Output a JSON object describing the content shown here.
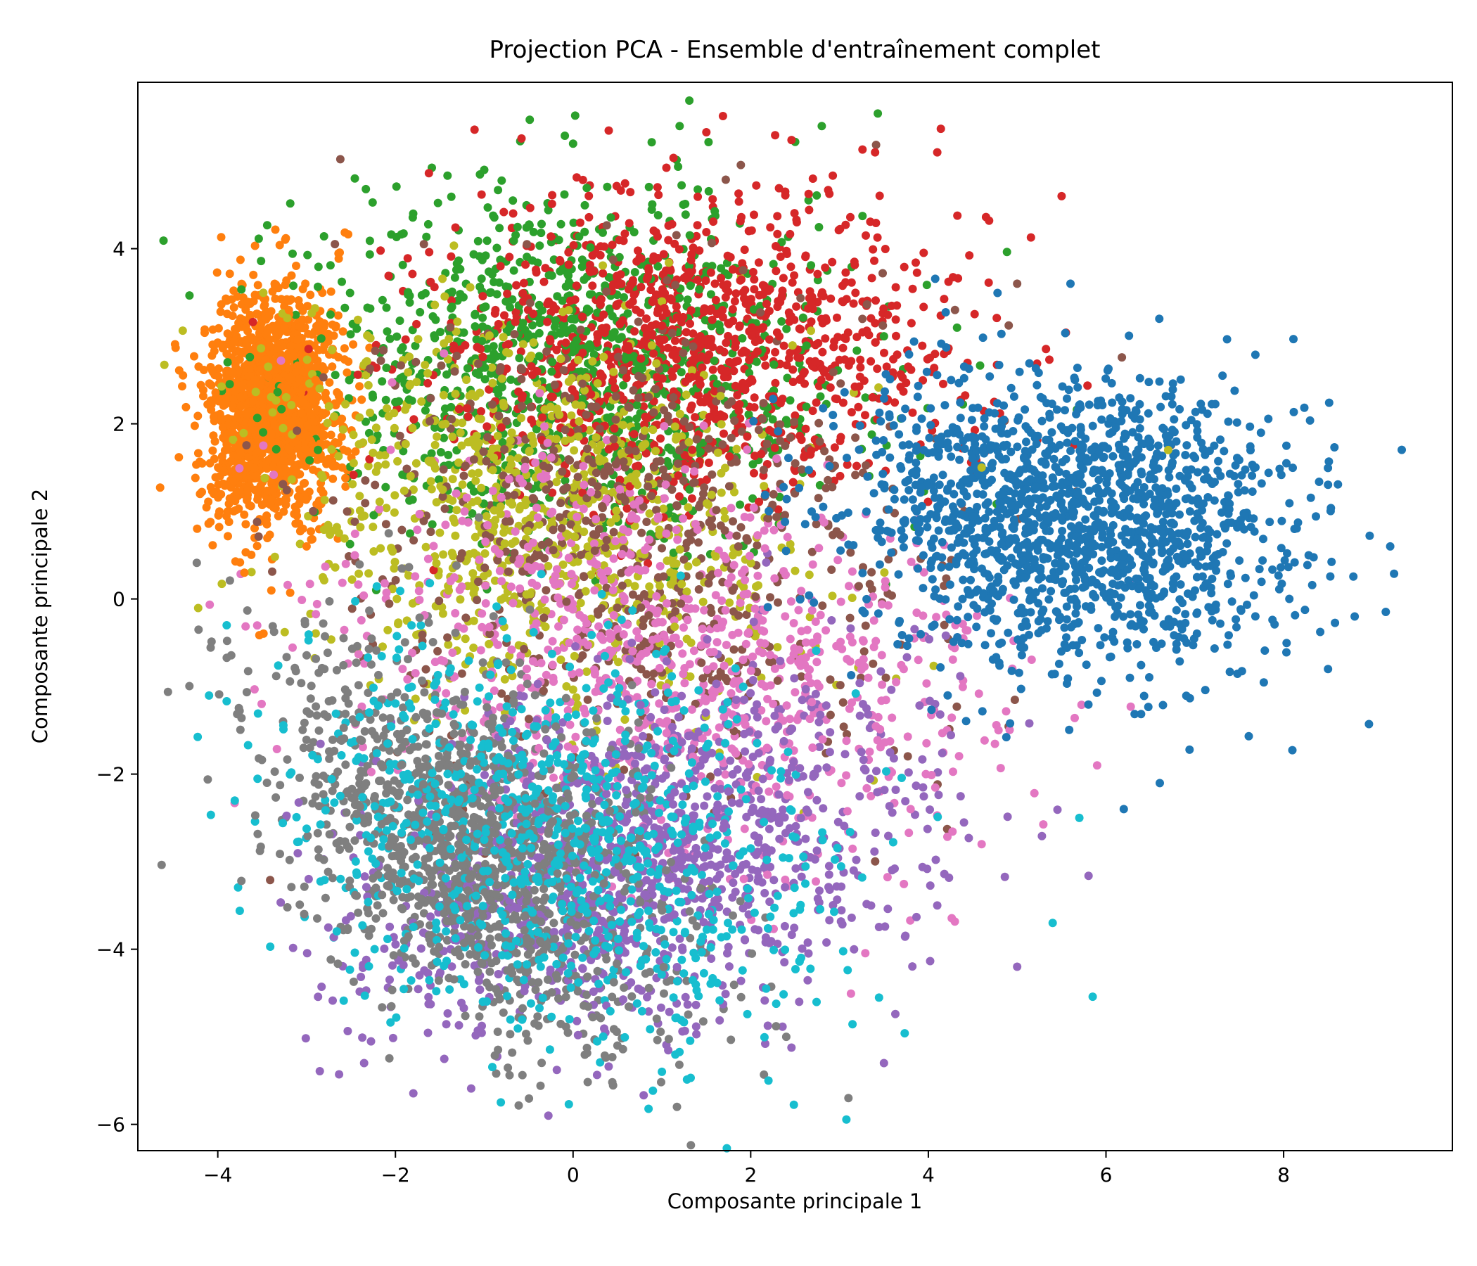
{
  "chart_data": {
    "type": "scatter",
    "title": "Projection PCA - Ensemble d'entraînement complet",
    "xlabel": "Composante principale 1",
    "ylabel": "Composante principale 2",
    "xlim": [
      -4.9,
      9.9
    ],
    "ylim": [
      -6.3,
      5.9
    ],
    "xticks": [
      -4,
      -2,
      0,
      2,
      4,
      6,
      8
    ],
    "yticks": [
      -6,
      -4,
      -2,
      0,
      2,
      4
    ],
    "grid": false,
    "legend": "none",
    "series": [
      {
        "color": "#ff7f0e",
        "cx": -3.4,
        "cy": 2.2,
        "sx": 0.35,
        "sy": 0.65,
        "rho": 0.1,
        "n": 1600,
        "x": [
          -4.2,
          -3.9,
          -3.6,
          -3.2,
          -2.9,
          -2.6,
          -3.0,
          -3.7
        ],
        "y": [
          1.2,
          2.8,
          3.7,
          3.3,
          2.5,
          1.5,
          0.6,
          0.3
        ]
      },
      {
        "color": "#2ca02c",
        "cx": 0.0,
        "cy": 2.7,
        "sx": 1.5,
        "sy": 1.0,
        "rho": 0.0,
        "n": 1100,
        "x": [
          -1.0,
          0.0,
          1.2,
          2.8,
          -1.8,
          3.5
        ],
        "y": [
          4.9,
          5.2,
          5.4,
          5.4,
          4.4,
          3.0
        ]
      },
      {
        "color": "#d62728",
        "cx": 1.4,
        "cy": 2.9,
        "sx": 1.4,
        "sy": 0.85,
        "rho": 0.05,
        "n": 1100,
        "x": [
          3.4,
          4.1,
          5.5,
          2.7
        ],
        "y": [
          5.1,
          5.1,
          4.6,
          4.8
        ]
      },
      {
        "color": "#bcbd22",
        "cx": -0.4,
        "cy": 1.0,
        "sx": 1.4,
        "sy": 1.1,
        "rho": -0.2,
        "n": 900,
        "x": [
          4.6,
          6.7
        ],
        "y": [
          1.5,
          1.7
        ]
      },
      {
        "color": "#8c564b",
        "cx": 0.6,
        "cy": 0.8,
        "sx": 1.7,
        "sy": 1.4,
        "rho": -0.1,
        "n": 700,
        "x": [
          5.0,
          4.3
        ],
        "y": [
          3.6,
          3.3
        ]
      },
      {
        "color": "#e377c2",
        "cx": 1.0,
        "cy": -0.6,
        "sx": 1.7,
        "sy": 1.1,
        "rho": -0.3,
        "n": 900,
        "x": [
          5.9,
          4.6,
          3.8
        ],
        "y": [
          -1.9,
          -2.8,
          -2.4
        ]
      },
      {
        "color": "#9467bd",
        "cx": 0.8,
        "cy": -3.0,
        "sx": 1.6,
        "sy": 1.0,
        "rho": 0.3,
        "n": 1200,
        "x": [
          3.5,
          5.0,
          4.1
        ],
        "y": [
          -5.3,
          -4.2,
          -3.5
        ]
      },
      {
        "color": "#7f7f7f",
        "cx": -1.1,
        "cy": -2.8,
        "sx": 1.1,
        "sy": 1.1,
        "rho": -0.45,
        "n": 1400,
        "x": [
          3.1,
          2.4,
          0.5,
          -2.8
        ],
        "y": [
          -5.7,
          -5.0,
          -5.1,
          -0.8
        ]
      },
      {
        "color": "#17becf",
        "cx": -0.2,
        "cy": -2.8,
        "sx": 1.5,
        "sy": 1.1,
        "rho": -0.2,
        "n": 900,
        "x": [
          1.0,
          2.2,
          5.4,
          5.7,
          -3.9
        ],
        "y": [
          -5.4,
          -5.5,
          -3.7,
          -2.5,
          -0.3
        ]
      },
      {
        "color": "#1f77b4",
        "cx": 5.7,
        "cy": 0.9,
        "sx": 1.25,
        "sy": 0.85,
        "rho": -0.1,
        "n": 1600,
        "x": [
          9.2,
          8.8,
          8.5,
          6.2,
          5.6,
          6.6
        ],
        "y": [
          0.6,
          -0.2,
          -0.8,
          -2.4,
          3.6,
          3.2
        ]
      }
    ]
  }
}
